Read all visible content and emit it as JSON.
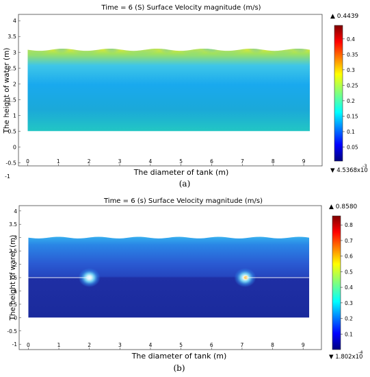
{
  "panel_a": {
    "title": "Time = 6 (S) Surface  Velocity  magnitude  (m/s)",
    "ylabel": "The height of water  (m)",
    "xlabel": "The diameter of tank  (m)",
    "sublabel": "(a)",
    "extra_tick": "-1",
    "colorbar": {
      "max_label": "▲ 0.4439",
      "min_label": "▼ 4.5368x10",
      "min_exp": "-3",
      "ticks": [
        "0.4",
        "0.35",
        "0.3",
        "0.25",
        "0.2",
        "0.15",
        "0.1",
        "0.05"
      ]
    }
  },
  "panel_b": {
    "title": "Time = 6 (s) Surface  Velocity  magnitude  (m/s)",
    "ylabel": "The height of warer  (m)",
    "xlabel": "The diameter of tank  (m)",
    "sublabel": "(b)",
    "colorbar": {
      "max_label": "▲ 0.8580",
      "min_label": "▼ 1.802x10",
      "min_exp": "-4",
      "ticks": [
        "0.8",
        "0.7",
        "0.6",
        "0.5",
        "0.4",
        "0.3",
        "0.2",
        "0.1"
      ]
    }
  },
  "chart_data": [
    {
      "type": "heatmap",
      "title": "Time = 6 (S) Surface  Velocity  magnitude  (m/s)",
      "xlabel": "The diameter of tank  (m)",
      "ylabel": "The height of water  (m)",
      "xlim": [
        -0.3,
        9.6
      ],
      "ylim": [
        -0.6,
        4.2
      ],
      "x_ticks": [
        "0",
        "1",
        "2",
        "3",
        "4",
        "5",
        "6",
        "7",
        "8",
        "9"
      ],
      "y_ticks": [
        "4",
        "3.5",
        "3",
        "2.5",
        "2",
        "1.5",
        "1",
        "0.5",
        "0",
        "-0.5"
      ],
      "domain": {
        "x": [
          0,
          9.2
        ],
        "y": [
          0.5,
          3.08
        ]
      },
      "colorbar_range": [
        0.0045368,
        0.4439
      ],
      "colormap": "jet",
      "hotspots_x": [
        0.3,
        1.9,
        3.7,
        5.4,
        6.5,
        8.3
      ],
      "grid": false
    },
    {
      "type": "heatmap",
      "title": "Time = 6 (s) Surface  Velocity  magnitude  (m/s)",
      "xlabel": "The diameter of tank  (m)",
      "ylabel": "The height of warer  (m)",
      "xlim": [
        -0.3,
        9.6
      ],
      "ylim": [
        -1.2,
        4.2
      ],
      "x_ticks": [
        "0",
        "1",
        "2",
        "3",
        "4",
        "5",
        "6",
        "7",
        "8",
        "9"
      ],
      "y_ticks": [
        "4",
        "3.5",
        "3",
        "2.5",
        "2",
        "1.5",
        "1",
        "0.5",
        "0",
        "-0.5",
        "-1"
      ],
      "domain": {
        "x": [
          0,
          9.2
        ],
        "y": [
          0,
          3.0
        ]
      },
      "plate_height": 1.5,
      "plate_left_x": [
        0,
        2.0
      ],
      "plate_right_x": [
        7.1,
        9.2
      ],
      "jet_x": [
        2.0,
        7.1
      ],
      "colorbar_range": [
        0.0001802,
        0.858
      ],
      "colormap": "jet",
      "grid": false
    }
  ]
}
